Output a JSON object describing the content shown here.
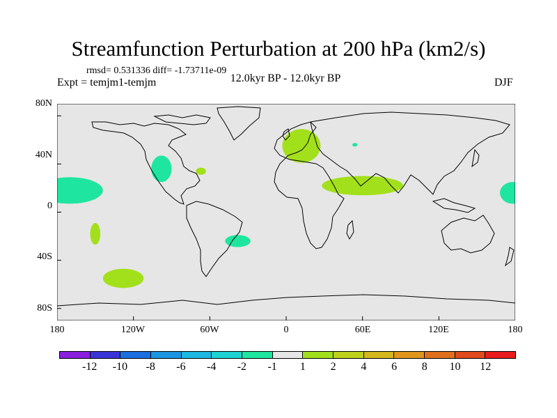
{
  "title": "Streamfunction Perturbation at 200 hPa (km2/s)",
  "stats": "rmsd= 0.531336 diff= -1.73711e-09",
  "experiment": "Expt = temjm1-temjm",
  "period": "12.0kyr BP - 12.0kyr BP",
  "season": "DJF",
  "y_ticks": [
    "80N",
    "40N",
    "0",
    "40S",
    "80S"
  ],
  "x_ticks": [
    "180",
    "120W",
    "60W",
    "0",
    "60E",
    "120E",
    "180"
  ],
  "colorbar": {
    "colors": [
      "#8a1fe0",
      "#3a34d8",
      "#1c6fe0",
      "#1c96e0",
      "#1cb8e0",
      "#1cd2d2",
      "#1ee6a0",
      "#e6e6e6",
      "#a3e01c",
      "#bed21c",
      "#d2b81c",
      "#e0961c",
      "#e0701c",
      "#e04a1c",
      "#e81c1c"
    ],
    "labels": [
      "-12",
      "-10",
      "-8",
      "-6",
      "-4",
      "-2",
      "-1",
      "1",
      "2",
      "4",
      "6",
      "8",
      "10",
      "12"
    ]
  },
  "map_style": {
    "background": "#e6e6e6",
    "land_line": "#000000"
  },
  "chart_data": {
    "type": "contour-map",
    "variable": "Streamfunction Perturbation",
    "level": "200 hPa",
    "units": "km2/s",
    "lon_range": [
      -180,
      180
    ],
    "lat_range": [
      -90,
      90
    ],
    "anomaly_regions": [
      {
        "name": "north-pacific-east",
        "sign": "negative",
        "color": "#1ee6a0",
        "center_lon": -170,
        "center_lat": 18,
        "rx_deg": 26,
        "ry_deg": 11
      },
      {
        "name": "north-pacific-west",
        "sign": "negative",
        "color": "#1ee6a0",
        "center_lon": 178,
        "center_lat": 16,
        "rx_deg": 10,
        "ry_deg": 9
      },
      {
        "name": "north-america-east",
        "sign": "negative",
        "color": "#1ee6a0",
        "center_lon": -98,
        "center_lat": 36,
        "rx_deg": 8,
        "ry_deg": 11
      },
      {
        "name": "south-atlantic",
        "sign": "negative",
        "color": "#1ee6a0",
        "center_lon": -38,
        "center_lat": -24,
        "rx_deg": 10,
        "ry_deg": 5
      },
      {
        "name": "caspian-small",
        "sign": "negative",
        "color": "#1ee6a0",
        "center_lon": 54,
        "center_lat": 56,
        "rx_deg": 2,
        "ry_deg": 1.5
      },
      {
        "name": "europe",
        "sign": "positive",
        "color": "#a3e01c",
        "center_lon": 12,
        "center_lat": 55,
        "rx_deg": 15,
        "ry_deg": 14
      },
      {
        "name": "atlantic-small",
        "sign": "positive",
        "color": "#a3e01c",
        "center_lon": -67,
        "center_lat": 34,
        "rx_deg": 4,
        "ry_deg": 3
      },
      {
        "name": "middle-east-india",
        "sign": "positive",
        "color": "#a3e01c",
        "center_lon": 60,
        "center_lat": 22,
        "rx_deg": 32,
        "ry_deg": 8
      },
      {
        "name": "south-pacific-east",
        "sign": "positive",
        "color": "#a3e01c",
        "center_lon": -150,
        "center_lat": -18,
        "rx_deg": 4,
        "ry_deg": 9
      },
      {
        "name": "south-pacific-sw",
        "sign": "positive",
        "color": "#a3e01c",
        "center_lon": -128,
        "center_lat": -55,
        "rx_deg": 16,
        "ry_deg": 8
      }
    ]
  }
}
